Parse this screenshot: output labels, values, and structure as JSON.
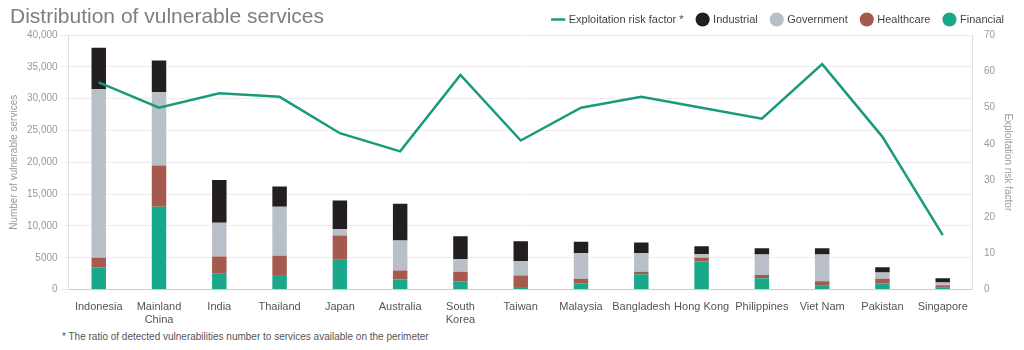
{
  "chart_data": {
    "type": "bar",
    "title": "Distribution of vulnerable services",
    "ylabel": "Number of vulnerable services",
    "y2label": "Exploitation risk factor",
    "footnote": "* The ratio of detected vulnerabilities number to services available on the perimeter",
    "categories": [
      "Indonesia",
      "Mainland China",
      "India",
      "Thailand",
      "Japan",
      "Australia",
      "South Korea",
      "Taiwan",
      "Malaysia",
      "Bangladesh",
      "Hong Kong",
      "Philippines",
      "Viet Nam",
      "Pakistan",
      "Singapore"
    ],
    "series": [
      {
        "name": "Exploitation risk factor *",
        "type": "line",
        "axis": "y2",
        "color": "#1a9a7d",
        "values": [
          57,
          50,
          54,
          53,
          43,
          38,
          59,
          41,
          50,
          53,
          50,
          47,
          62,
          42,
          15
        ]
      },
      {
        "name": "Industrial",
        "color": "#231f20",
        "values": [
          6500,
          5000,
          6700,
          3200,
          4500,
          5800,
          3600,
          3100,
          1800,
          1700,
          1200,
          1000,
          1000,
          800,
          700
        ]
      },
      {
        "name": "Government",
        "color": "#b9bfc7",
        "values": [
          26500,
          11500,
          5300,
          7700,
          1000,
          4700,
          2000,
          2300,
          4000,
          2900,
          600,
          3200,
          4200,
          1000,
          400
        ]
      },
      {
        "name": "Healthcare",
        "color": "#a65a4e",
        "values": [
          1500,
          6500,
          2700,
          3000,
          3800,
          1400,
          1500,
          1800,
          700,
          400,
          600,
          500,
          700,
          700,
          400
        ]
      },
      {
        "name": "Financial",
        "color": "#1aa88a",
        "values": [
          3500,
          13000,
          2500,
          2300,
          4700,
          1600,
          1300,
          400,
          1000,
          2400,
          4400,
          1800,
          600,
          1000,
          300
        ]
      }
    ],
    "ylim": [
      0,
      40000
    ],
    "yticks": [
      0,
      {
        "value": 5000,
        "label": "5000"
      },
      {
        "value": 10000,
        "label": "10,000"
      },
      {
        "value": 15000,
        "label": "15,000"
      },
      {
        "value": 20000,
        "label": "20,000"
      },
      {
        "value": 25000,
        "label": "25,000"
      },
      {
        "value": 30000,
        "label": "30,000"
      },
      {
        "value": 35000,
        "label": "35,000"
      },
      {
        "value": 40000,
        "label": "40,000"
      }
    ],
    "y2lim": [
      0,
      70
    ],
    "y2ticks": [
      0,
      10,
      20,
      30,
      40,
      50,
      60,
      70
    ],
    "stacked": true,
    "grid": true,
    "legend": "top-right"
  }
}
